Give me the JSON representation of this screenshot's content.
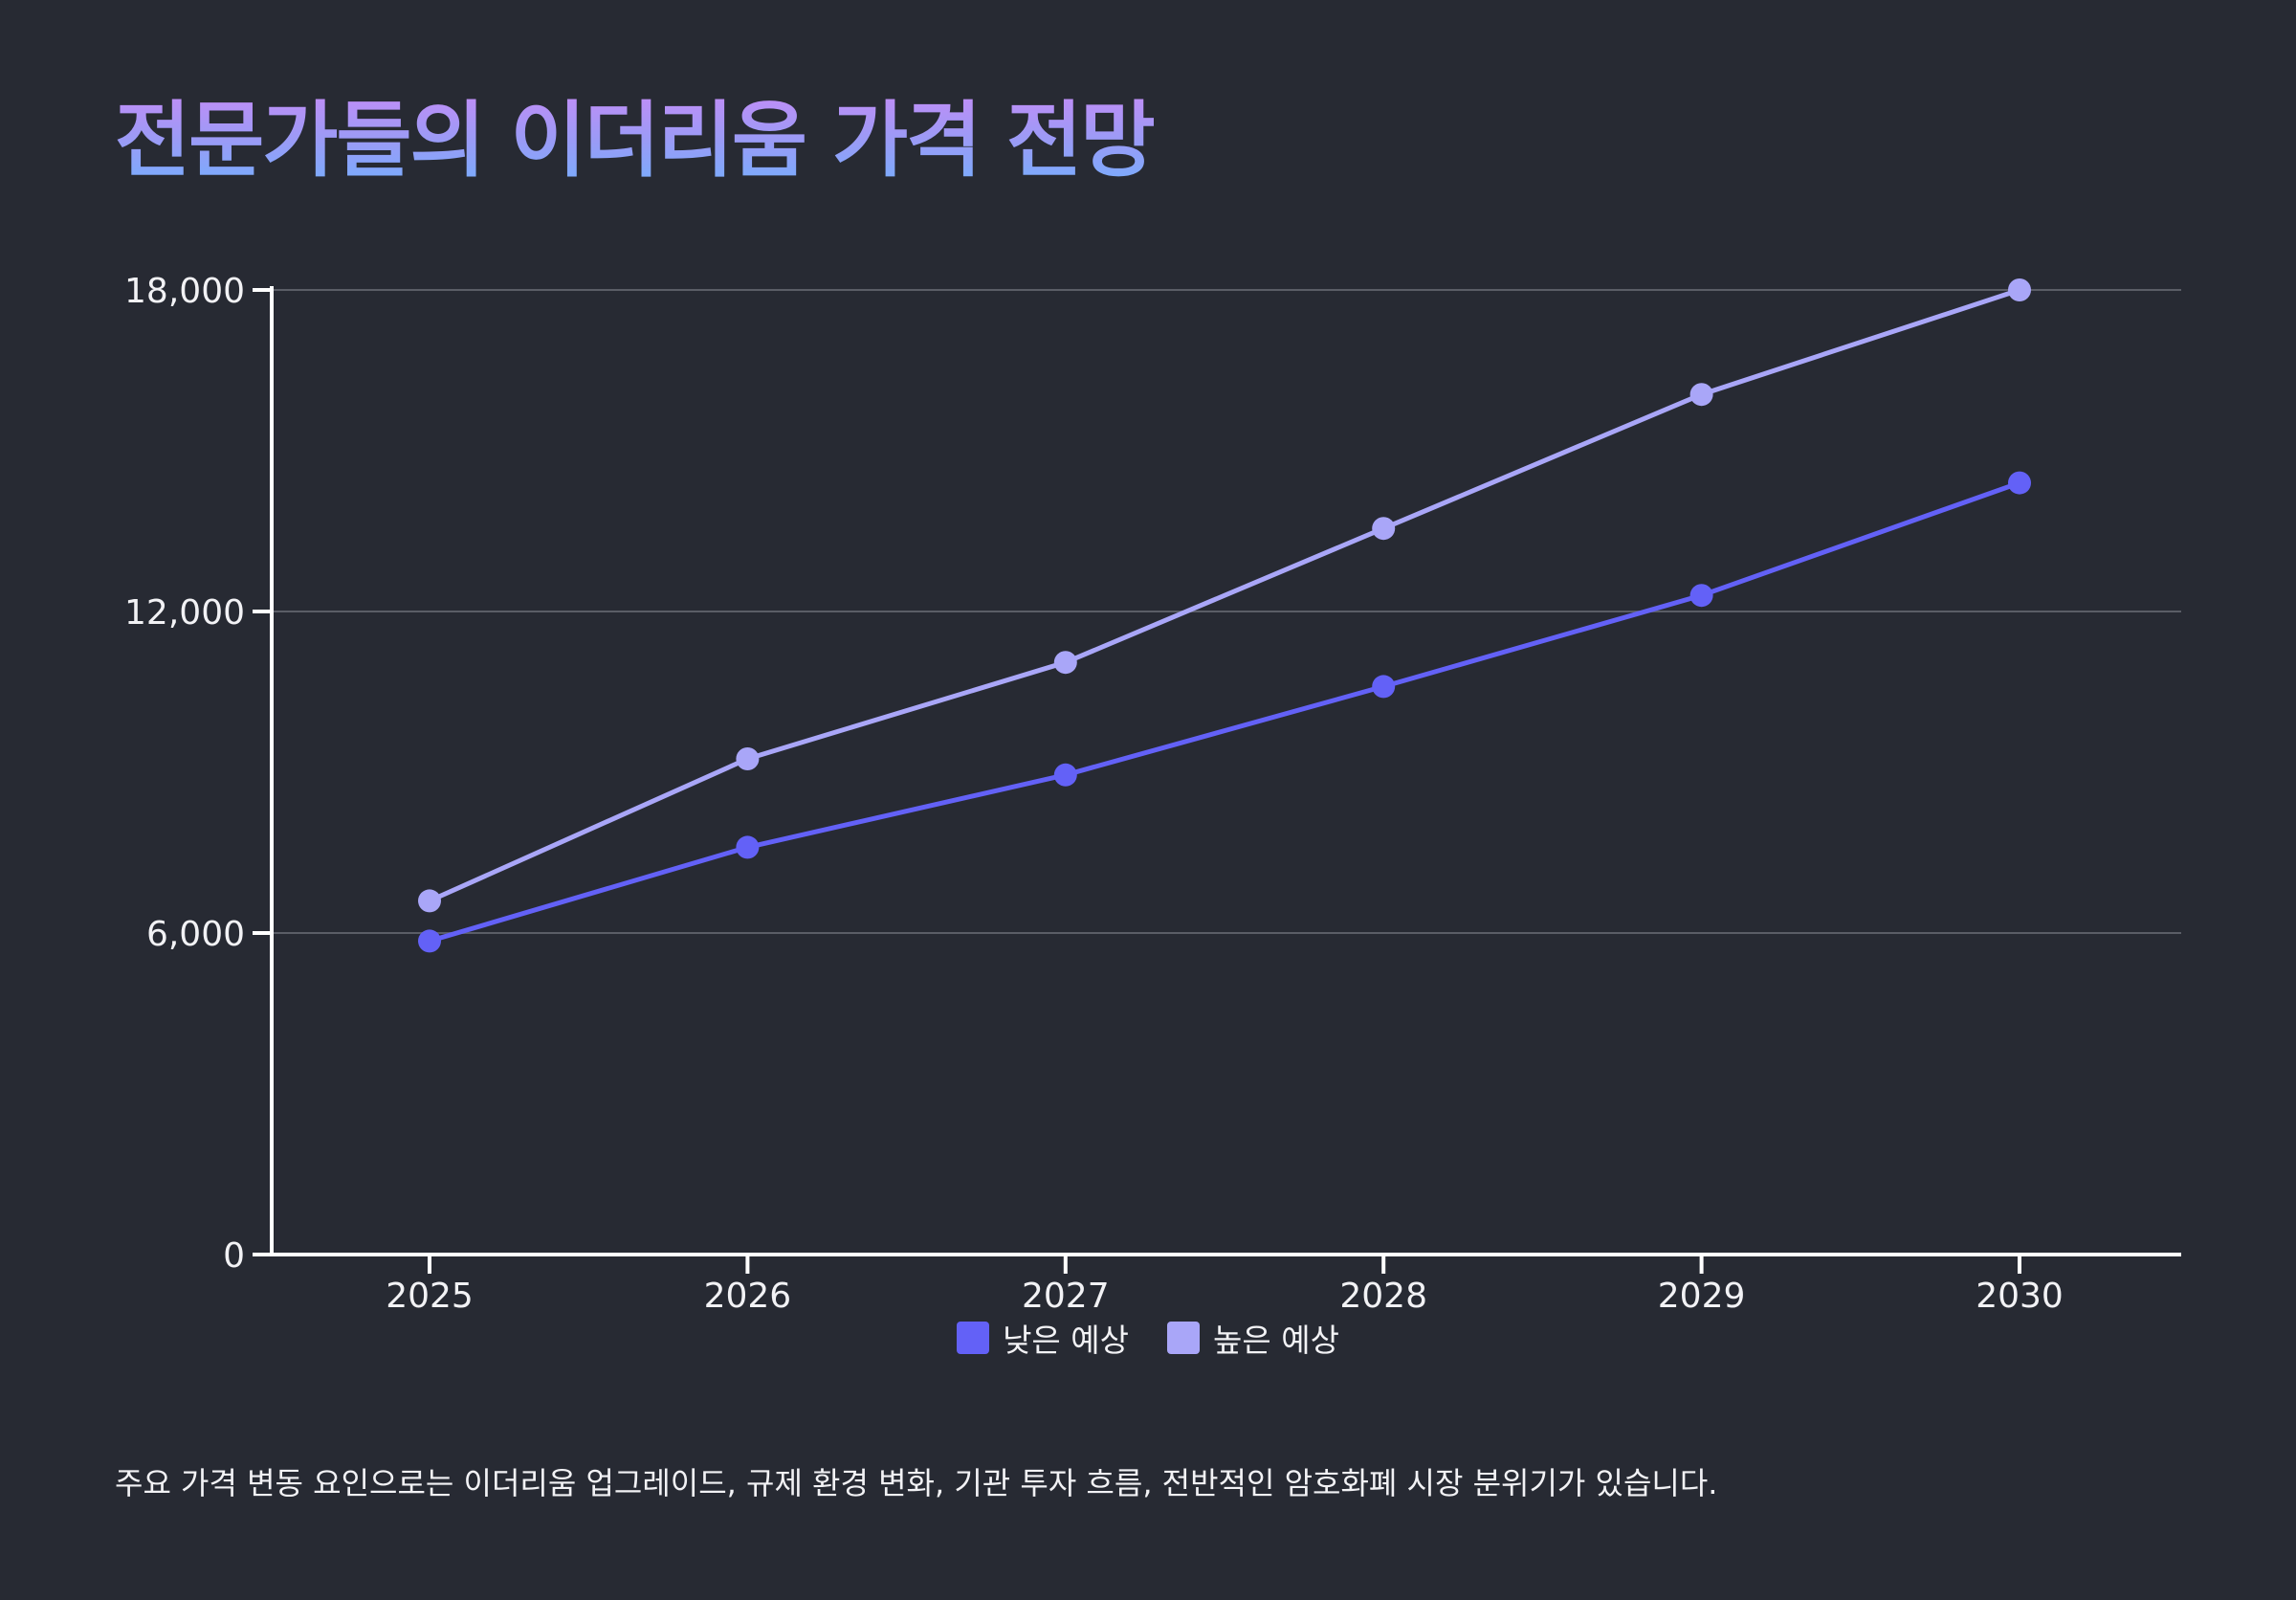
{
  "title": "전문가들의 이더리움 가격 전망",
  "footnote": "주요 가격 변동 요인으로는 이더리움 업그레이드, 규제 환경 변화, 기관 투자 흐름, 전반적인 암호화폐 시장 분위기가 있습니다.",
  "colors": {
    "background": "#272a33",
    "low": "#6361f7",
    "high": "#a9a6f8",
    "grid": "#5a5d66",
    "axis": "#ffffff",
    "text": "#f2f2f5"
  },
  "chart_data": {
    "type": "line",
    "title": "전문가들의 이더리움 가격 전망",
    "xlabel": "",
    "ylabel": "",
    "x": [
      "2025",
      "2026",
      "2027",
      "2028",
      "2029",
      "2030"
    ],
    "yticks": [
      0,
      6000,
      12000,
      18000
    ],
    "ytick_labels": [
      "0",
      "6,000",
      "12,000",
      "18,000"
    ],
    "ylim": [
      0,
      18000
    ],
    "grid": "horizontal",
    "legend_position": "bottom-center",
    "series": [
      {
        "name": "낮은 예상",
        "color": "#6361f7",
        "values": [
          5850,
          7600,
          8950,
          10600,
          12300,
          14400
        ]
      },
      {
        "name": "높은 예상",
        "color": "#a9a6f8",
        "values": [
          6600,
          9250,
          11050,
          13550,
          16050,
          18000
        ]
      }
    ]
  }
}
